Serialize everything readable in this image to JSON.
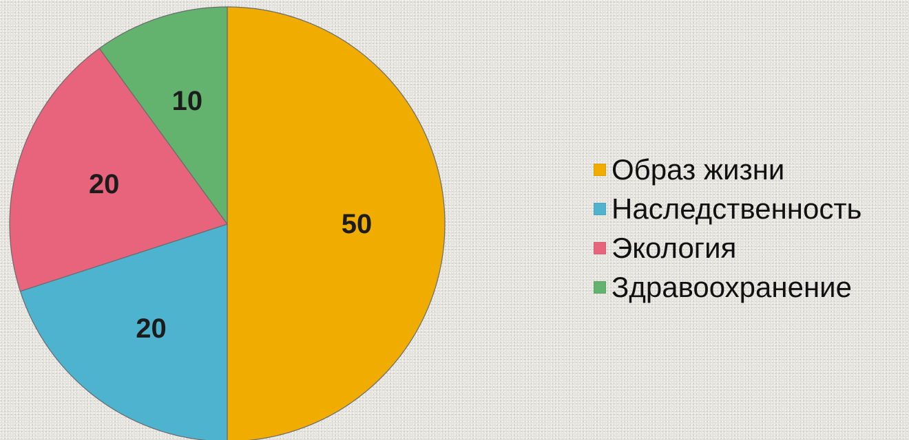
{
  "chart_data": {
    "type": "pie",
    "title": "",
    "legend_position": "right",
    "categories": [
      "Образ жизни",
      "Наследственность",
      "Экология",
      "Здравоохранение"
    ],
    "values": [
      50,
      20,
      20,
      10
    ],
    "data_labels": [
      "50",
      "20",
      "20",
      "10"
    ],
    "colors": [
      "#f0ad00",
      "#4eb3cf",
      "#e8647c",
      "#63b26d"
    ]
  }
}
